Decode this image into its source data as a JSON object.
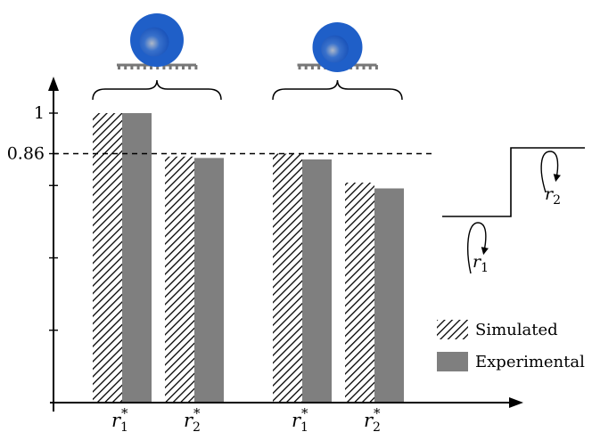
{
  "chart_data": {
    "type": "bar",
    "categories": [
      "r1*",
      "r2*",
      "r1*",
      "r2*"
    ],
    "category_labels": [
      {
        "base": "r",
        "sub": "1",
        "sup": "*"
      },
      {
        "base": "r",
        "sub": "2",
        "sup": "*"
      },
      {
        "base": "r",
        "sub": "1",
        "sup": "*"
      },
      {
        "base": "r",
        "sub": "2",
        "sup": "*"
      }
    ],
    "series": [
      {
        "name": "Simulated",
        "values": [
          1.0,
          0.85,
          0.86,
          0.76
        ],
        "pattern": "hatched"
      },
      {
        "name": "Experimental",
        "values": [
          1.0,
          0.845,
          0.84,
          0.74
        ],
        "color": "#7f7f7f"
      }
    ],
    "groups": [
      {
        "categories": [
          0,
          1
        ]
      },
      {
        "categories": [
          2,
          3
        ]
      }
    ],
    "reference_line": {
      "value": 0.86,
      "label": "0.86",
      "style": "dashed"
    },
    "yticks": [
      {
        "value": 1.0,
        "label": "1"
      },
      {
        "value": 0.86,
        "label": "0.86"
      },
      {
        "value": 0.75,
        "label": ""
      },
      {
        "value": 0.5,
        "label": ""
      },
      {
        "value": 0.25,
        "label": ""
      }
    ],
    "ylim": [
      0,
      1.12
    ],
    "title": "",
    "xlabel": "",
    "ylabel": "",
    "legend": {
      "position": "bottom-right"
    },
    "grid": false,
    "droplet_color": "#1f5fc8",
    "step_labels": [
      {
        "base": "r",
        "sub": "1"
      },
      {
        "base": "r",
        "sub": "2"
      }
    ]
  }
}
